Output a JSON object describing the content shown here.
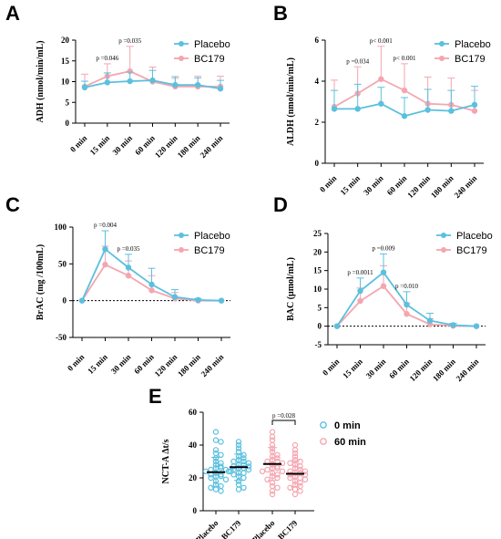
{
  "colors": {
    "placebo": "#5bc0de",
    "bc179": "#f4a6b0",
    "axis": "#000000"
  },
  "chart_data": [
    {
      "panel": "A",
      "type": "line",
      "ylabel": "ADH (nmol/min/mL)",
      "categories": [
        "0 min",
        "15 min",
        "30 min",
        "60 min",
        "120 min",
        "180 min",
        "240 min"
      ],
      "ylim": [
        0,
        20
      ],
      "yticks": [
        "0",
        "5",
        "10",
        "15",
        "20"
      ],
      "ytick_values": [
        0,
        5,
        10,
        15,
        20
      ],
      "legend": "top-right",
      "zero_line": false,
      "series": [
        {
          "name": "Placebo",
          "values": [
            8.6,
            9.8,
            10.1,
            10.3,
            9.2,
            9.2,
            8.3
          ],
          "err": [
            1.5,
            2.3,
            2.2,
            2.4,
            2.0,
            1.7,
            2.0
          ]
        },
        {
          "name": "BC179",
          "values": [
            8.8,
            11.3,
            12.5,
            10.0,
            8.8,
            8.8,
            8.8
          ],
          "err": [
            3.0,
            3.0,
            6.0,
            3.5,
            2.0,
            2.5,
            2.5
          ]
        }
      ],
      "annotations": [
        {
          "text": "p =0.046",
          "x": 1
        },
        {
          "text": "p =0.035",
          "x": 2
        }
      ]
    },
    {
      "panel": "B",
      "type": "line",
      "ylabel": "ALDH (nmol/min/mL)",
      "categories": [
        "0 min",
        "15 min",
        "30 min",
        "60 min",
        "120 min",
        "180 min",
        "240 min"
      ],
      "ylim": [
        0,
        6
      ],
      "yticks": [
        "0",
        "2",
        "4",
        "6"
      ],
      "ytick_values": [
        0,
        2,
        4,
        6
      ],
      "legend": "top-right",
      "zero_line": false,
      "series": [
        {
          "name": "Placebo",
          "values": [
            2.65,
            2.65,
            2.9,
            2.3,
            2.6,
            2.55,
            2.85
          ],
          "err": [
            0.9,
            1.2,
            0.8,
            0.9,
            1.0,
            1.0,
            0.9
          ]
        },
        {
          "name": "BC179",
          "values": [
            2.75,
            3.4,
            4.1,
            3.55,
            2.9,
            2.85,
            2.55
          ],
          "err": [
            1.3,
            1.3,
            1.6,
            1.3,
            1.3,
            1.3,
            1.0
          ]
        }
      ],
      "annotations": [
        {
          "text": "p =0.034",
          "x": 1
        },
        {
          "text": "p< 0.001",
          "x": 2
        },
        {
          "text": "p< 0.001",
          "x": 3
        }
      ]
    },
    {
      "panel": "C",
      "type": "line",
      "ylabel": "BrAC (mg /100mL)",
      "categories": [
        "0 min",
        "15 min",
        "30 min",
        "60 min",
        "120 min",
        "180 min",
        "240 min"
      ],
      "ylim": [
        -50,
        100
      ],
      "yticks": [
        "-50",
        "0",
        "50",
        "100"
      ],
      "ytick_values": [
        -50,
        0,
        50,
        100
      ],
      "legend": "top-right",
      "zero_line": true,
      "series": [
        {
          "name": "Placebo",
          "values": [
            0,
            70,
            45,
            22,
            5,
            1,
            0
          ],
          "err": [
            0,
            25,
            18,
            22,
            10,
            2,
            0
          ]
        },
        {
          "name": "BC179",
          "values": [
            0,
            49,
            34,
            14,
            3,
            0,
            0
          ],
          "err": [
            0,
            25,
            20,
            20,
            8,
            1,
            0
          ]
        }
      ],
      "annotations": [
        {
          "text": "p =0.004",
          "x": 1
        },
        {
          "text": "p =0.035",
          "x": 2
        }
      ]
    },
    {
      "panel": "D",
      "type": "line",
      "ylabel": "BAC (μmol/mL)",
      "categories": [
        "0 min",
        "15 min",
        "30 min",
        "60 min",
        "120 min",
        "180 min",
        "240 min"
      ],
      "ylim": [
        -5,
        25
      ],
      "yticks": [
        "-5",
        "0",
        "5",
        "10",
        "15",
        "20",
        "25"
      ],
      "ytick_values": [
        -5,
        0,
        5,
        10,
        15,
        20,
        25
      ],
      "legend": "top-right",
      "zero_line": true,
      "series": [
        {
          "name": "Placebo",
          "values": [
            0,
            9.5,
            14.5,
            5.8,
            1.5,
            0.3,
            0
          ],
          "err": [
            0,
            3.5,
            5.0,
            3.5,
            2.0,
            0.5,
            0
          ]
        },
        {
          "name": "BC179",
          "values": [
            0,
            6.8,
            10.8,
            3.3,
            0.5,
            0.1,
            0
          ],
          "err": [
            0,
            3.5,
            5.5,
            3.0,
            1.5,
            0.3,
            0
          ]
        }
      ],
      "annotations": [
        {
          "text": "p =0.0011",
          "x": 1
        },
        {
          "text": "p =0.009",
          "x": 2
        },
        {
          "text": "p =0.010",
          "x": 3
        }
      ]
    },
    {
      "panel": "E",
      "type": "scatter",
      "ylabel": "NCT-A Δt/s",
      "categories": [
        "Placebo",
        "BC179",
        "Placebo",
        "BC179"
      ],
      "ylim": [
        0,
        60
      ],
      "yticks": [
        "0",
        "20",
        "40",
        "60"
      ],
      "ytick_values": [
        0,
        20,
        40,
        60
      ],
      "legend": "right",
      "legend_entries": [
        {
          "name": "0 min",
          "color": "placebo"
        },
        {
          "name": "60 min",
          "color": "bc179"
        }
      ],
      "groups": [
        {
          "category": "Placebo",
          "series": "0 min",
          "mean": 23.5,
          "sd": 9,
          "values": [
            48,
            43,
            42,
            37,
            35,
            34,
            32,
            30,
            29,
            28,
            27,
            26,
            26,
            25,
            25,
            24,
            24,
            23,
            22,
            22,
            21,
            21,
            20,
            19,
            18,
            16,
            15,
            14,
            13,
            12
          ]
        },
        {
          "category": "BC179",
          "series": "0 min",
          "mean": 26.5,
          "sd": 8,
          "values": [
            42,
            40,
            38,
            36,
            34,
            33,
            32,
            31,
            30,
            30,
            29,
            28,
            28,
            27,
            27,
            26,
            26,
            25,
            25,
            24,
            23,
            23,
            22,
            21,
            20,
            18,
            16,
            14,
            13
          ]
        },
        {
          "category": "Placebo",
          "series": "60 min",
          "mean": 28.5,
          "sd": 10,
          "values": [
            48,
            45,
            43,
            40,
            38,
            36,
            34,
            33,
            32,
            31,
            30,
            30,
            29,
            28,
            27,
            26,
            26,
            25,
            24,
            24,
            23,
            22,
            21,
            20,
            19,
            17,
            15,
            14,
            12,
            10
          ]
        },
        {
          "category": "BC179",
          "series": "60 min",
          "mean": 22.5,
          "sd": 8,
          "values": [
            40,
            37,
            35,
            33,
            31,
            30,
            29,
            28,
            27,
            26,
            25,
            24,
            24,
            23,
            23,
            22,
            22,
            21,
            20,
            20,
            19,
            18,
            17,
            16,
            15,
            14,
            13,
            12,
            10
          ]
        }
      ],
      "annotations": [
        {
          "text": "p =0.028",
          "between": [
            2,
            3
          ]
        }
      ]
    }
  ]
}
